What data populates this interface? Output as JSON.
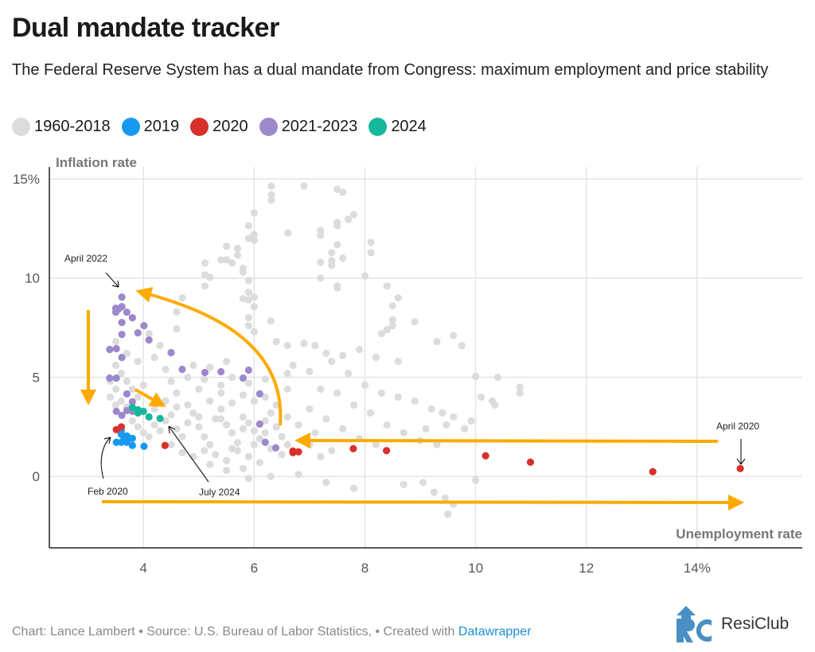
{
  "header": {
    "title": "Dual mandate tracker",
    "subtitle": "The Federal Reserve System has a dual mandate from Congress: maximum employment and price stability"
  },
  "colors": {
    "1960-2018": "#dcdcdc",
    "2019": "#1799f2",
    "2020": "#d8302b",
    "2021-2023": "#9d88cc",
    "2024": "#15b89a",
    "arrow": "#ffaa00"
  },
  "chart_data": {
    "type": "scatter",
    "xlabel": "Unemployment rate",
    "ylabel": "Inflation rate",
    "xlim": [
      2.3,
      15.9
    ],
    "ylim": [
      -3.6,
      15.6
    ],
    "grid": true,
    "legend_position": "top",
    "x_ticks": [
      {
        "value": 4,
        "label": "4"
      },
      {
        "value": 6,
        "label": "6"
      },
      {
        "value": 8,
        "label": "8"
      },
      {
        "value": 10,
        "label": "10"
      },
      {
        "value": 12,
        "label": "12"
      },
      {
        "value": 14,
        "label": "14%"
      }
    ],
    "y_ticks": [
      {
        "value": 0,
        "label": "0"
      },
      {
        "value": 5,
        "label": "5"
      },
      {
        "value": 10,
        "label": "10"
      },
      {
        "value": 15,
        "label": "15%"
      }
    ],
    "series": [
      {
        "name": "1960-2018",
        "points": [
          [
            6.31,
            14.64
          ],
          [
            6.31,
            14.2
          ],
          [
            6.31,
            13.92
          ],
          [
            6.9,
            14.64
          ],
          [
            7.5,
            14.48
          ],
          [
            7.6,
            14.32
          ],
          [
            6.0,
            13.28
          ],
          [
            7.8,
            13.2
          ],
          [
            7.7,
            12.96
          ],
          [
            7.5,
            12.8
          ],
          [
            7.5,
            12.64
          ],
          [
            5.9,
            12.64
          ],
          [
            6.61,
            12.28
          ],
          [
            7.2,
            12.4
          ],
          [
            7.2,
            12.16
          ],
          [
            5.9,
            12.0
          ],
          [
            6.0,
            12.2
          ],
          [
            6.0,
            11.9
          ],
          [
            8.11,
            11.8
          ],
          [
            8.11,
            11.28
          ],
          [
            7.5,
            11.68
          ],
          [
            7.4,
            11.28
          ],
          [
            5.5,
            11.6
          ],
          [
            5.7,
            11.5
          ],
          [
            5.7,
            11.16
          ],
          [
            5.4,
            10.92
          ],
          [
            5.5,
            10.92
          ],
          [
            5.6,
            10.76
          ],
          [
            5.11,
            10.76
          ],
          [
            5.8,
            10.5
          ],
          [
            5.8,
            10.3
          ],
          [
            5.11,
            10.16
          ],
          [
            5.2,
            10.04
          ],
          [
            5.11,
            9.6
          ],
          [
            5.9,
            9.88
          ],
          [
            7.2,
            10.8
          ],
          [
            7.4,
            10.88
          ],
          [
            7.4,
            10.64
          ],
          [
            7.6,
            11.0
          ],
          [
            7.2,
            10.0
          ],
          [
            8.0,
            10.1
          ],
          [
            7.5,
            9.6
          ],
          [
            7.5,
            9.5
          ],
          [
            8.4,
            9.6
          ],
          [
            5.9,
            9.28
          ],
          [
            5.8,
            8.96
          ],
          [
            5.9,
            8.9
          ],
          [
            6.0,
            9.04
          ],
          [
            6.0,
            8.56
          ],
          [
            4.7,
            9.0
          ],
          [
            4.6,
            8.3
          ],
          [
            4.6,
            7.44
          ],
          [
            5.9,
            8.0
          ],
          [
            5.9,
            7.6
          ],
          [
            6.3,
            7.84
          ],
          [
            6.0,
            7.3
          ],
          [
            8.5,
            8.6
          ],
          [
            8.5,
            7.9
          ],
          [
            8.5,
            7.6
          ],
          [
            8.4,
            7.4
          ],
          [
            8.3,
            7.2
          ],
          [
            8.6,
            9.0
          ],
          [
            8.9,
            7.8
          ],
          [
            9.3,
            6.8
          ],
          [
            9.6,
            7.1
          ],
          [
            9.75,
            6.6
          ],
          [
            4.1,
            7.2
          ],
          [
            4.3,
            6.6
          ],
          [
            4.2,
            6.0
          ],
          [
            6.4,
            6.8
          ],
          [
            6.6,
            6.6
          ],
          [
            6.9,
            6.7
          ],
          [
            7.1,
            6.6
          ],
          [
            7.3,
            6.2
          ],
          [
            7.6,
            6.1
          ],
          [
            7.9,
            6.4
          ],
          [
            8.2,
            6.0
          ],
          [
            8.6,
            5.8
          ],
          [
            6.7,
            5.6
          ],
          [
            7.0,
            5.3
          ],
          [
            7.4,
            5.8
          ],
          [
            7.7,
            5.2
          ],
          [
            8.0,
            4.6
          ],
          [
            8.3,
            4.2
          ],
          [
            8.6,
            4.0
          ],
          [
            8.9,
            3.8
          ],
          [
            9.2,
            3.4
          ],
          [
            9.4,
            3.2
          ],
          [
            9.6,
            3.0
          ],
          [
            7.2,
            4.4
          ],
          [
            7.5,
            4.2
          ],
          [
            7.8,
            3.6
          ],
          [
            8.1,
            3.2
          ],
          [
            8.4,
            2.6
          ],
          [
            8.7,
            2.2
          ],
          [
            9.0,
            1.8
          ],
          [
            9.1,
            2.4
          ],
          [
            9.3,
            1.6
          ],
          [
            7.0,
            3.4
          ],
          [
            7.3,
            2.9
          ],
          [
            7.6,
            2.4
          ],
          [
            7.9,
            1.9
          ],
          [
            8.2,
            1.6
          ],
          [
            10.0,
            5.04
          ],
          [
            10.4,
            5.0
          ],
          [
            10.1,
            4.0
          ],
          [
            10.8,
            4.5
          ],
          [
            10.8,
            4.2
          ],
          [
            10.3,
            3.8
          ],
          [
            10.35,
            3.6
          ],
          [
            9.92,
            2.8
          ],
          [
            9.8,
            2.4
          ],
          [
            9.47,
            2.6
          ],
          [
            9.05,
            -0.3
          ],
          [
            9.25,
            -0.8
          ],
          [
            9.45,
            -1.1
          ],
          [
            9.5,
            -1.9
          ],
          [
            9.6,
            -1.4
          ],
          [
            10.0,
            -0.2
          ],
          [
            8.7,
            -0.4
          ],
          [
            7.3,
            -0.3
          ],
          [
            7.8,
            -0.6
          ],
          [
            6.8,
            0.1
          ],
          [
            6.3,
            0.0
          ],
          [
            5.9,
            -0.1
          ],
          [
            3.5,
            5.6
          ],
          [
            3.6,
            5.2
          ],
          [
            3.4,
            4.8
          ],
          [
            3.5,
            4.4
          ],
          [
            3.4,
            4.0
          ],
          [
            3.6,
            3.8
          ],
          [
            3.7,
            3.5
          ],
          [
            3.5,
            3.6
          ],
          [
            3.8,
            4.4
          ],
          [
            3.9,
            4.0
          ],
          [
            3.7,
            4.8
          ],
          [
            3.5,
            6.8
          ],
          [
            3.9,
            5.8
          ],
          [
            3.7,
            6.2
          ],
          [
            3.8,
            2.8
          ],
          [
            3.9,
            2.5
          ],
          [
            4.0,
            2.2
          ],
          [
            4.1,
            2.0
          ],
          [
            4.2,
            2.6
          ],
          [
            4.3,
            2.3
          ],
          [
            4.4,
            2.8
          ],
          [
            4.5,
            3.1
          ],
          [
            4.6,
            2.4
          ],
          [
            4.7,
            2.0
          ],
          [
            4.8,
            2.7
          ],
          [
            4.9,
            3.2
          ],
          [
            5.0,
            2.5
          ],
          [
            5.1,
            2.0
          ],
          [
            5.2,
            1.6
          ],
          [
            5.3,
            2.9
          ],
          [
            5.4,
            3.4
          ],
          [
            5.5,
            2.6
          ],
          [
            5.6,
            2.2
          ],
          [
            5.7,
            1.7
          ],
          [
            5.8,
            3.0
          ],
          [
            5.9,
            2.7
          ],
          [
            6.0,
            2.3
          ],
          [
            6.1,
            1.9
          ],
          [
            6.2,
            2.8
          ],
          [
            6.3,
            3.2
          ],
          [
            6.4,
            2.5
          ],
          [
            6.5,
            2.0
          ],
          [
            6.6,
            3.0
          ],
          [
            6.8,
            2.6
          ],
          [
            6.9,
            1.8
          ],
          [
            4.5,
            1.6
          ],
          [
            4.7,
            1.2
          ],
          [
            4.9,
            1.0
          ],
          [
            5.1,
            1.3
          ],
          [
            5.3,
            1.1
          ],
          [
            5.5,
            0.8
          ],
          [
            5.7,
            1.3
          ],
          [
            5.9,
            1.0
          ],
          [
            6.1,
            0.7
          ],
          [
            6.3,
            1.4
          ],
          [
            6.5,
            1.1
          ],
          [
            4.4,
            3.8
          ],
          [
            4.6,
            4.2
          ],
          [
            4.8,
            3.6
          ],
          [
            5.0,
            4.4
          ],
          [
            5.2,
            3.8
          ],
          [
            5.4,
            4.2
          ],
          [
            5.6,
            3.7
          ],
          [
            5.8,
            4.1
          ],
          [
            6.0,
            3.8
          ],
          [
            6.2,
            4.0
          ],
          [
            6.4,
            3.6
          ],
          [
            6.6,
            4.4
          ],
          [
            4.5,
            4.8
          ],
          [
            4.8,
            5.0
          ],
          [
            5.1,
            4.9
          ],
          [
            5.4,
            4.6
          ],
          [
            5.6,
            5.0
          ],
          [
            5.9,
            4.7
          ],
          [
            6.2,
            4.9
          ],
          [
            6.6,
            5.2
          ],
          [
            4.9,
            5.6
          ],
          [
            5.2,
            5.5
          ],
          [
            5.5,
            5.8
          ],
          [
            4.4,
            5.4
          ],
          [
            4.0,
            4.6
          ],
          [
            4.2,
            3.4
          ],
          [
            4.6,
            3.5
          ],
          [
            5.0,
            3.0
          ],
          [
            5.4,
            2.9
          ],
          [
            5.8,
            2.4
          ],
          [
            6.2,
            2.2
          ],
          [
            5.6,
            1.4
          ],
          [
            5.2,
            0.6
          ],
          [
            5.5,
            0.3
          ],
          [
            5.8,
            0.4
          ],
          [
            6.0,
            1.6
          ],
          [
            6.6,
            1.6
          ],
          [
            7.0,
            1.6
          ],
          [
            7.1,
            2.2
          ],
          [
            7.2,
            1.0
          ],
          [
            7.4,
            1.3
          ]
        ]
      },
      {
        "name": "2019",
        "points": [
          [
            3.6,
            2.32
          ],
          [
            3.6,
            2.12
          ],
          [
            3.65,
            1.96
          ],
          [
            3.7,
            2.04
          ],
          [
            3.8,
            1.92
          ],
          [
            3.51,
            1.72
          ],
          [
            3.6,
            1.72
          ],
          [
            3.7,
            1.72
          ],
          [
            3.8,
            1.56
          ],
          [
            4.01,
            1.52
          ],
          [
            3.68,
            1.88
          ]
        ]
      },
      {
        "name": "2020",
        "points": [
          [
            3.51,
            2.36
          ],
          [
            3.6,
            2.5
          ],
          [
            4.39,
            1.56
          ],
          [
            6.7,
            1.28
          ],
          [
            6.7,
            1.2
          ],
          [
            6.8,
            1.24
          ],
          [
            7.79,
            1.4
          ],
          [
            8.39,
            1.3
          ],
          [
            10.18,
            1.04
          ],
          [
            10.99,
            0.72
          ],
          [
            13.2,
            0.24
          ],
          [
            14.78,
            0.4
          ]
        ]
      },
      {
        "name": "2021-2023",
        "points": [
          [
            3.61,
            9.04
          ],
          [
            3.5,
            8.48
          ],
          [
            3.55,
            8.44
          ],
          [
            3.61,
            8.56
          ],
          [
            3.5,
            8.28
          ],
          [
            3.7,
            8.28
          ],
          [
            3.8,
            8.0
          ],
          [
            3.61,
            7.76
          ],
          [
            4.01,
            7.6
          ],
          [
            3.9,
            7.24
          ],
          [
            3.61,
            7.16
          ],
          [
            4.1,
            6.88
          ],
          [
            3.39,
            6.4
          ],
          [
            3.51,
            6.44
          ],
          [
            3.61,
            6.0
          ],
          [
            4.5,
            6.24
          ],
          [
            4.7,
            5.4
          ],
          [
            5.11,
            5.24
          ],
          [
            5.4,
            5.28
          ],
          [
            5.9,
            5.36
          ],
          [
            5.8,
            4.96
          ],
          [
            3.39,
            4.96
          ],
          [
            3.51,
            4.96
          ],
          [
            6.1,
            4.16
          ],
          [
            3.7,
            4.16
          ],
          [
            3.8,
            3.76
          ],
          [
            3.51,
            3.28
          ],
          [
            3.61,
            3.08
          ],
          [
            3.7,
            3.32
          ],
          [
            3.8,
            3.28
          ],
          [
            6.1,
            2.64
          ],
          [
            6.2,
            1.72
          ],
          [
            6.39,
            1.44
          ]
        ]
      },
      {
        "name": "2024",
        "points": [
          [
            3.8,
            3.48
          ],
          [
            3.9,
            3.36
          ],
          [
            3.9,
            3.2
          ],
          [
            4.0,
            3.28
          ],
          [
            4.1,
            3.0
          ],
          [
            4.3,
            2.92
          ]
        ]
      }
    ],
    "annotations": [
      "April 2022",
      "Feb 2020",
      "July 2024",
      "April 2020"
    ]
  },
  "footer": {
    "credit": "Chart: Lance Lambert • Source: U.S. Bureau of Labor Statistics,  • Created with ",
    "link": "Datawrapper"
  },
  "logo": {
    "text": "ResiClub"
  }
}
